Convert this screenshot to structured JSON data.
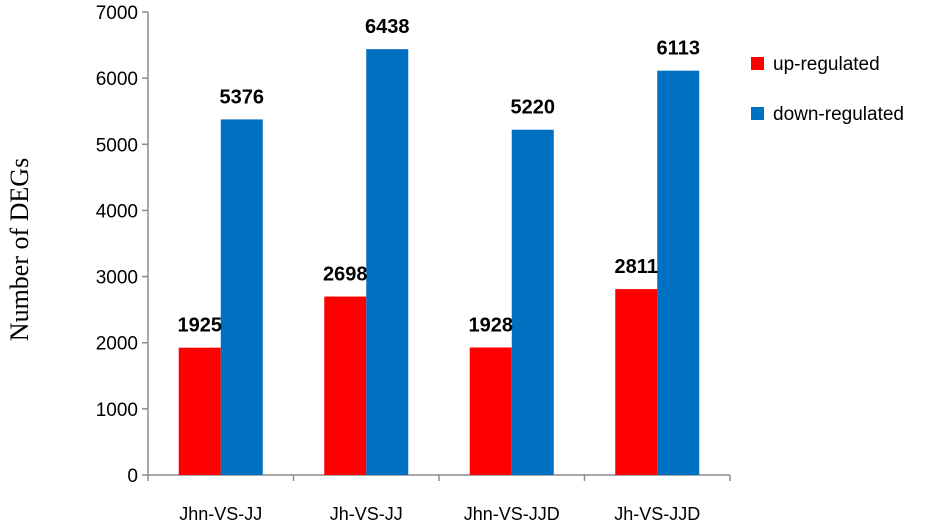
{
  "chart_data": {
    "type": "bar",
    "title": "",
    "xlabel": "",
    "ylabel": "Number of DEGs",
    "ylim": [
      0,
      7000
    ],
    "yticks": [
      0,
      1000,
      2000,
      3000,
      4000,
      5000,
      6000,
      7000
    ],
    "categories": [
      "Jhn-VS-JJ",
      "Jh-VS-JJ",
      "Jhn-VS-JJD",
      "Jh-VS-JJD"
    ],
    "series": [
      {
        "name": "up-regulated",
        "color": "#ff0000",
        "values": [
          1925,
          2698,
          1928,
          2811
        ]
      },
      {
        "name": "down-regulated",
        "color": "#0070c0",
        "values": [
          5376,
          6438,
          5220,
          6113
        ]
      }
    ],
    "grid": false,
    "legend": "right",
    "data_labels": true
  }
}
